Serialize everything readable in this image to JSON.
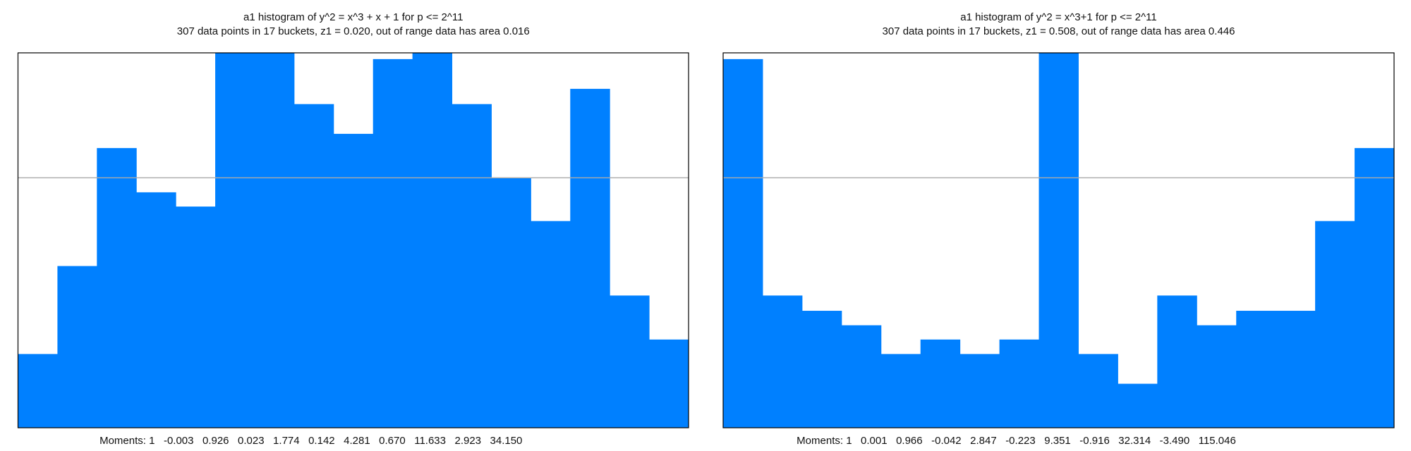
{
  "chart_data": [
    {
      "type": "histogram",
      "title": "a1 histogram of y^2 = x^3 + x + 1 for p <= 2^11",
      "subtitle": "307 data points in 17 buckets, z1 = 0.020, out of range data has area 0.016",
      "x_label": "Moments: 1   -0.003   0.926   0.023   1.774   0.142   4.281   0.670   11.633   2.923   34.150",
      "values": [
        0.295,
        0.647,
        1.119,
        0.942,
        0.885,
        1.5,
        1.5,
        1.295,
        1.176,
        1.475,
        1.5,
        1.295,
        1.0,
        0.827,
        1.356,
        0.529,
        0.353
      ],
      "color": "#0080ff",
      "ylim": [
        0,
        1.5
      ],
      "reference_line": 1
    },
    {
      "type": "histogram",
      "title": "a1 histogram of y^2 = x^3+1 for p <= 2^11",
      "subtitle": "307 data points in 17 buckets, z1 = 0.508, out of range data has area 0.446",
      "x_label": "Moments: 1   0.001   0.966   -0.042   2.847   -0.223   9.351   -0.916   32.314   -3.490   115.046",
      "values": [
        1.475,
        0.529,
        0.468,
        0.41,
        0.295,
        0.353,
        0.295,
        0.353,
        1.5,
        0.295,
        0.176,
        0.529,
        0.41,
        0.468,
        0.468,
        0.827,
        1.119
      ],
      "color": "#0080ff",
      "ylim": [
        0,
        1.5
      ],
      "reference_line": 1
    }
  ]
}
